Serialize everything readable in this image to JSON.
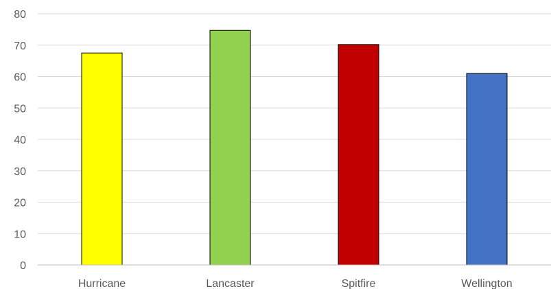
{
  "chart_data": {
    "type": "bar",
    "title": "",
    "xlabel": "",
    "ylabel": "",
    "categories": [
      "Hurricane",
      "Lancaster",
      "Spitfire",
      "Wellington"
    ],
    "values": [
      67.5,
      74.7,
      70.2,
      61.0
    ],
    "colors": [
      "#ffff00",
      "#92d050",
      "#c00000",
      "#4472c4"
    ],
    "ylim": [
      0,
      80
    ],
    "yticks": [
      "0",
      "10",
      "20",
      "30",
      "40",
      "50",
      "60",
      "70",
      "80"
    ],
    "grid": true,
    "legend": "none"
  }
}
